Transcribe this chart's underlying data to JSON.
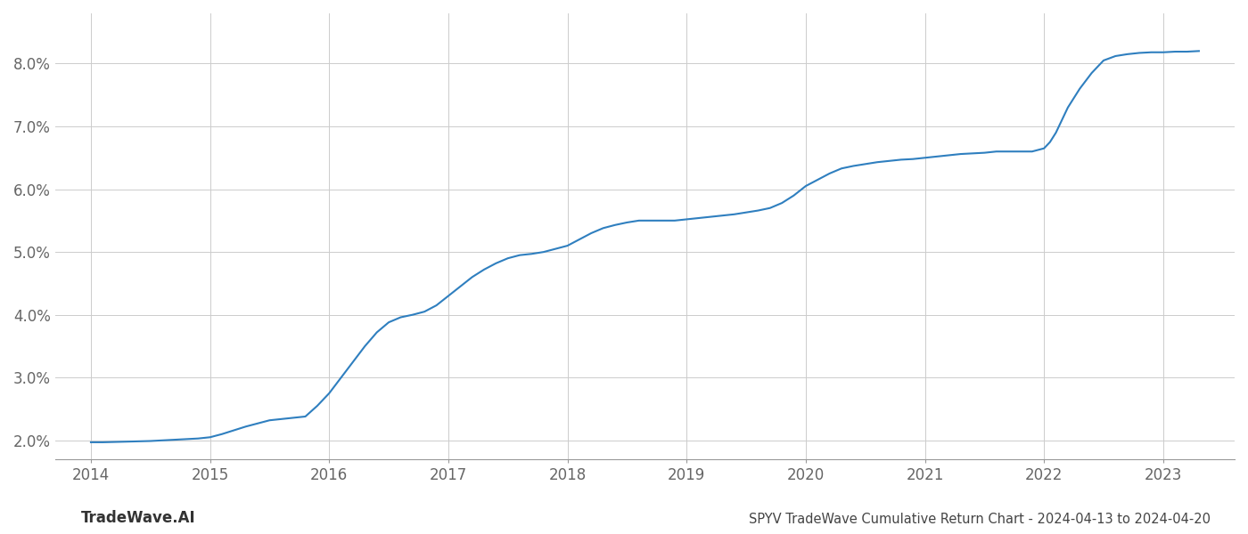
{
  "title": "SPYV TradeWave Cumulative Return Chart - 2024-04-13 to 2024-04-20",
  "watermark": "TradeWave.AI",
  "x_values": [
    2014.0,
    2014.1,
    2014.2,
    2014.3,
    2014.4,
    2014.5,
    2014.6,
    2014.7,
    2014.8,
    2014.9,
    2015.0,
    2015.1,
    2015.2,
    2015.3,
    2015.4,
    2015.5,
    2015.55,
    2015.6,
    2015.7,
    2015.8,
    2015.9,
    2016.0,
    2016.1,
    2016.2,
    2016.3,
    2016.4,
    2016.5,
    2016.6,
    2016.7,
    2016.8,
    2016.9,
    2017.0,
    2017.1,
    2017.2,
    2017.3,
    2017.4,
    2017.5,
    2017.6,
    2017.7,
    2017.8,
    2017.9,
    2018.0,
    2018.1,
    2018.2,
    2018.3,
    2018.4,
    2018.5,
    2018.6,
    2018.7,
    2018.8,
    2018.9,
    2019.0,
    2019.1,
    2019.2,
    2019.3,
    2019.4,
    2019.5,
    2019.6,
    2019.7,
    2019.8,
    2019.9,
    2020.0,
    2020.1,
    2020.2,
    2020.3,
    2020.4,
    2020.5,
    2020.6,
    2020.7,
    2020.8,
    2020.9,
    2021.0,
    2021.1,
    2021.2,
    2021.3,
    2021.4,
    2021.5,
    2021.6,
    2021.7,
    2021.8,
    2021.9,
    2022.0,
    2022.05,
    2022.1,
    2022.15,
    2022.2,
    2022.3,
    2022.4,
    2022.5,
    2022.6,
    2022.7,
    2022.8,
    2022.9,
    2023.0,
    2023.1,
    2023.2,
    2023.3
  ],
  "y_values": [
    1.97,
    1.97,
    1.975,
    1.98,
    1.985,
    1.99,
    2.0,
    2.01,
    2.02,
    2.03,
    2.05,
    2.1,
    2.16,
    2.22,
    2.27,
    2.32,
    2.33,
    2.34,
    2.36,
    2.38,
    2.55,
    2.75,
    3.0,
    3.25,
    3.5,
    3.72,
    3.88,
    3.96,
    4.0,
    4.05,
    4.15,
    4.3,
    4.45,
    4.6,
    4.72,
    4.82,
    4.9,
    4.95,
    4.97,
    5.0,
    5.05,
    5.1,
    5.2,
    5.3,
    5.38,
    5.43,
    5.47,
    5.5,
    5.5,
    5.5,
    5.5,
    5.52,
    5.54,
    5.56,
    5.58,
    5.6,
    5.63,
    5.66,
    5.7,
    5.78,
    5.9,
    6.05,
    6.15,
    6.25,
    6.33,
    6.37,
    6.4,
    6.43,
    6.45,
    6.47,
    6.48,
    6.5,
    6.52,
    6.54,
    6.56,
    6.57,
    6.58,
    6.6,
    6.6,
    6.6,
    6.6,
    6.65,
    6.75,
    6.9,
    7.1,
    7.3,
    7.6,
    7.85,
    8.05,
    8.12,
    8.15,
    8.17,
    8.18,
    8.18,
    8.19,
    8.19,
    8.2
  ],
  "line_color": "#2f7fbf",
  "line_width": 1.5,
  "background_color": "#ffffff",
  "grid_color": "#cccccc",
  "xlim": [
    2013.7,
    2023.6
  ],
  "ylim": [
    1.7,
    8.8
  ],
  "yticks": [
    2.0,
    3.0,
    4.0,
    5.0,
    6.0,
    7.0,
    8.0
  ],
  "xticks": [
    2014,
    2015,
    2016,
    2017,
    2018,
    2019,
    2020,
    2021,
    2022,
    2023
  ],
  "title_fontsize": 10.5,
  "tick_fontsize": 12,
  "watermark_fontsize": 12,
  "title_color": "#444444",
  "tick_color": "#666666",
  "watermark_color": "#333333"
}
